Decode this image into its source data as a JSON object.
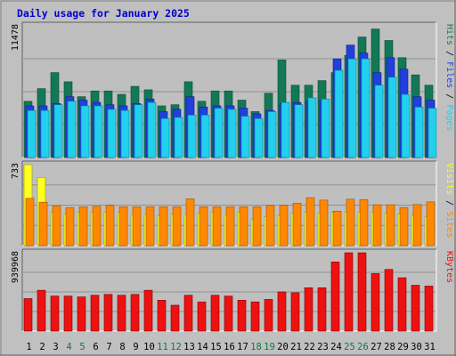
{
  "title": "Daily usage for January 2025",
  "colors": {
    "background": "#c0c0c0",
    "panel": "#bfbfbf",
    "title": "#0000cc",
    "hits": "#127856",
    "files": "#2040dd",
    "pages": "#22d0ee",
    "visits": "#ffff22",
    "sites": "#ff8800",
    "kbytes": "#ee1111",
    "weekend_label": "#117744",
    "weekday_label": "#000000"
  },
  "chart_data": [
    {
      "type": "bar",
      "title": "Daily usage for January 2025",
      "ylabel": "Pages / Files / Hits",
      "max_label": "11478",
      "ylim": [
        0,
        11478
      ],
      "categories": [
        "1",
        "2",
        "3",
        "4",
        "5",
        "6",
        "7",
        "8",
        "9",
        "10",
        "11",
        "12",
        "13",
        "14",
        "15",
        "16",
        "17",
        "18",
        "19",
        "20",
        "21",
        "22",
        "23",
        "24",
        "25",
        "26",
        "27",
        "28",
        "29",
        "30",
        "31"
      ],
      "weekend_days": [
        "4",
        "5",
        "11",
        "12",
        "18",
        "19",
        "25",
        "26"
      ],
      "series": [
        {
          "name": "Hits",
          "values": [
            4900,
            6000,
            7400,
            6600,
            5300,
            5800,
            5800,
            5500,
            6200,
            5900,
            4500,
            4600,
            6600,
            4900,
            5800,
            5800,
            5000,
            4000,
            5600,
            8500,
            6300,
            6300,
            6700,
            7400,
            8900,
            10500,
            11200,
            10200,
            8700,
            7200,
            6300
          ]
        },
        {
          "name": "Files",
          "values": [
            4500,
            4500,
            4700,
            5300,
            5000,
            4800,
            4600,
            4500,
            4700,
            5100,
            4000,
            4200,
            5300,
            4400,
            4500,
            4500,
            4300,
            3800,
            4100,
            4700,
            4800,
            4900,
            5000,
            8600,
            9800,
            9100,
            7400,
            8700,
            7700,
            5300,
            5000
          ]
        },
        {
          "name": "Pages",
          "values": [
            4100,
            4100,
            4600,
            4900,
            4500,
            4500,
            4200,
            4100,
            4600,
            4800,
            3400,
            3500,
            3700,
            3700,
            4300,
            4200,
            3600,
            3400,
            4000,
            4800,
            4600,
            5200,
            5100,
            7600,
            8600,
            8600,
            6300,
            7000,
            5500,
            4400,
            4300
          ]
        }
      ]
    },
    {
      "type": "bar",
      "ylabel": "Sites / Visits",
      "max_label": "733",
      "ylim": [
        0,
        733
      ],
      "categories": [
        "1",
        "2",
        "3",
        "4",
        "5",
        "6",
        "7",
        "8",
        "9",
        "10",
        "11",
        "12",
        "13",
        "14",
        "15",
        "16",
        "17",
        "18",
        "19",
        "20",
        "21",
        "22",
        "23",
        "24",
        "25",
        "26",
        "27",
        "28",
        "29",
        "30",
        "31"
      ],
      "series": [
        {
          "name": "Visits",
          "values": [
            733,
            617,
            301,
            283,
            301,
            301,
            302,
            301,
            282,
            282,
            271,
            283,
            282,
            296,
            303,
            281,
            304,
            240,
            260,
            272,
            292,
            301,
            296,
            301,
            301,
            302,
            302,
            290,
            286,
            280,
            260
          ]
        },
        {
          "name": "Sites",
          "values": [
            428,
            393,
            358,
            345,
            351,
            355,
            364,
            352,
            351,
            352,
            352,
            352,
            424,
            352,
            352,
            352,
            352,
            352,
            363,
            364,
            384,
            434,
            412,
            312,
            420,
            417,
            370,
            370,
            345,
            372,
            396
          ]
        }
      ]
    },
    {
      "type": "bar",
      "ylabel": "KBytes",
      "max_label": "939968",
      "ylim": [
        0,
        939968
      ],
      "categories": [
        "1",
        "2",
        "3",
        "4",
        "5",
        "6",
        "7",
        "8",
        "9",
        "10",
        "11",
        "12",
        "13",
        "14",
        "15",
        "16",
        "17",
        "18",
        "19",
        "20",
        "21",
        "22",
        "23",
        "24",
        "25",
        "26",
        "27",
        "28",
        "29",
        "30",
        "31"
      ],
      "series": [
        {
          "name": "KBytes",
          "values": [
            390000,
            490000,
            420000,
            420000,
            410000,
            430000,
            440000,
            430000,
            440000,
            490000,
            370000,
            310000,
            430000,
            350000,
            430000,
            420000,
            370000,
            350000,
            380000,
            470000,
            460000,
            520000,
            520000,
            830000,
            939968,
            939968,
            690000,
            740000,
            640000,
            550000,
            540000
          ]
        }
      ]
    }
  ]
}
